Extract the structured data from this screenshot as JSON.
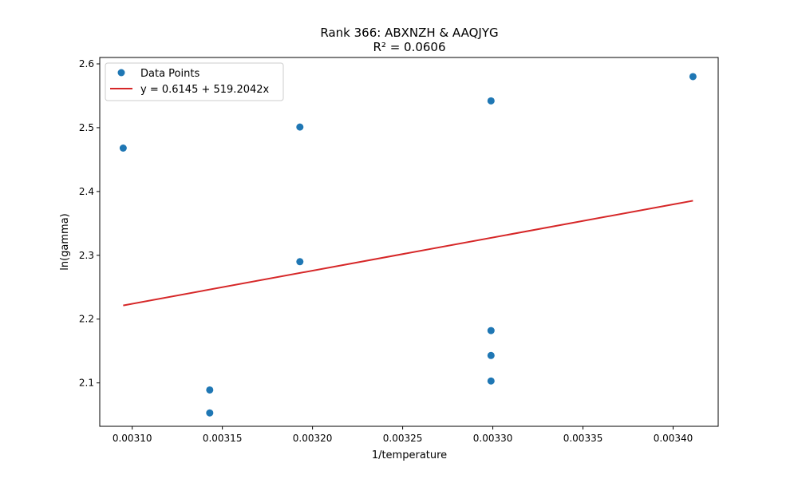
{
  "chart_data": {
    "type": "scatter",
    "title": "Rank 366: ABXNZH & AAQJYG",
    "subtitle": "R² = 0.0606",
    "xlabel": "1/temperature",
    "ylabel": "ln(gamma)",
    "xlim": [
      0.003082,
      0.003425
    ],
    "ylim": [
      2.032,
      2.61
    ],
    "xticks": [
      0.0031,
      0.00315,
      0.0032,
      0.00325,
      0.0033,
      0.00335,
      0.0034
    ],
    "xtick_labels": [
      "0.00310",
      "0.00315",
      "0.00320",
      "0.00325",
      "0.00330",
      "0.00335",
      "0.00340"
    ],
    "yticks": [
      2.1,
      2.2,
      2.3,
      2.4,
      2.5,
      2.6
    ],
    "ytick_labels": [
      "2.1",
      "2.2",
      "2.3",
      "2.4",
      "2.5",
      "2.6"
    ],
    "grid": false,
    "legend_position": "upper-left",
    "series": [
      {
        "name": "Data Points",
        "kind": "scatter",
        "color": "#1f77b4",
        "points": [
          {
            "x": 0.003095,
            "y": 2.468
          },
          {
            "x": 0.003143,
            "y": 2.089
          },
          {
            "x": 0.003143,
            "y": 2.053
          },
          {
            "x": 0.003193,
            "y": 2.501
          },
          {
            "x": 0.003193,
            "y": 2.29
          },
          {
            "x": 0.003299,
            "y": 2.542
          },
          {
            "x": 0.003299,
            "y": 2.182
          },
          {
            "x": 0.003299,
            "y": 2.143
          },
          {
            "x": 0.003299,
            "y": 2.103
          },
          {
            "x": 0.003411,
            "y": 2.58
          }
        ]
      },
      {
        "name": "y = 0.6145 + 519.2042x",
        "kind": "line",
        "color": "#d62728",
        "intercept": 0.6145,
        "slope": 519.2042,
        "x_range": [
          0.003095,
          0.003411
        ]
      }
    ]
  }
}
